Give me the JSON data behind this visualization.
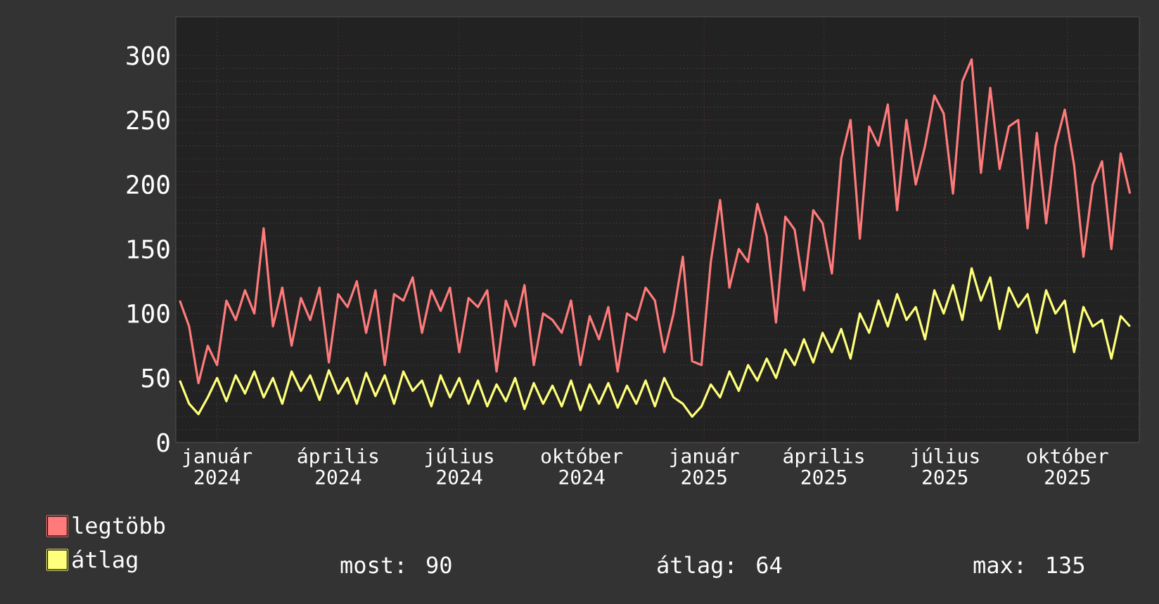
{
  "chart_data": {
    "type": "line",
    "x": [
      "2023-12-04",
      "2023-12-11",
      "2023-12-18",
      "2023-12-25",
      "2024-01-01",
      "2024-01-08",
      "2024-01-15",
      "2024-01-22",
      "2024-01-29",
      "2024-02-05",
      "2024-02-12",
      "2024-02-19",
      "2024-02-26",
      "2024-03-04",
      "2024-03-11",
      "2024-03-18",
      "2024-03-25",
      "2024-04-01",
      "2024-04-08",
      "2024-04-15",
      "2024-04-22",
      "2024-04-29",
      "2024-05-06",
      "2024-05-13",
      "2024-05-20",
      "2024-05-27",
      "2024-06-03",
      "2024-06-10",
      "2024-06-17",
      "2024-06-24",
      "2024-07-01",
      "2024-07-08",
      "2024-07-15",
      "2024-07-22",
      "2024-07-29",
      "2024-08-05",
      "2024-08-12",
      "2024-08-19",
      "2024-08-26",
      "2024-09-02",
      "2024-09-09",
      "2024-09-16",
      "2024-09-23",
      "2024-09-30",
      "2024-10-07",
      "2024-10-14",
      "2024-10-21",
      "2024-10-28",
      "2024-11-04",
      "2024-11-11",
      "2024-11-18",
      "2024-11-25",
      "2024-12-02",
      "2024-12-09",
      "2024-12-16",
      "2024-12-23",
      "2024-12-30",
      "2025-01-06",
      "2025-01-13",
      "2025-01-20",
      "2025-01-27",
      "2025-02-03",
      "2025-02-10",
      "2025-02-17",
      "2025-02-24",
      "2025-03-03",
      "2025-03-10",
      "2025-03-17",
      "2025-03-24",
      "2025-03-31",
      "2025-04-07",
      "2025-04-14",
      "2025-04-21",
      "2025-04-28",
      "2025-05-05",
      "2025-05-12",
      "2025-05-19",
      "2025-05-26",
      "2025-06-02",
      "2025-06-09",
      "2025-06-16",
      "2025-06-23",
      "2025-06-30",
      "2025-07-07",
      "2025-07-14",
      "2025-07-21",
      "2025-07-28",
      "2025-08-04",
      "2025-08-11",
      "2025-08-18",
      "2025-08-25",
      "2025-09-01",
      "2025-09-08",
      "2025-09-15",
      "2025-09-22",
      "2025-09-29",
      "2025-10-06",
      "2025-10-13",
      "2025-10-20",
      "2025-10-27",
      "2025-11-03",
      "2025-11-10",
      "2025-11-17"
    ],
    "series": [
      {
        "name": "legtöbb",
        "color": "#ff7b7b",
        "values": [
          110,
          90,
          46,
          75,
          60,
          110,
          95,
          118,
          100,
          166,
          90,
          120,
          75,
          112,
          95,
          120,
          62,
          115,
          105,
          125,
          85,
          118,
          60,
          115,
          110,
          128,
          85,
          118,
          102,
          120,
          70,
          112,
          105,
          118,
          55,
          110,
          90,
          122,
          60,
          100,
          95,
          85,
          110,
          60,
          98,
          80,
          105,
          55,
          100,
          95,
          120,
          110,
          70,
          100,
          144,
          63,
          60,
          140,
          188,
          120,
          150,
          140,
          185,
          160,
          93,
          175,
          165,
          118,
          180,
          170,
          131,
          220,
          250,
          158,
          245,
          230,
          262,
          180,
          250,
          200,
          230,
          269,
          255,
          193,
          280,
          297,
          209,
          275,
          212,
          245,
          250,
          166,
          240,
          170,
          230,
          258,
          215,
          144,
          200,
          218,
          150,
          224,
          193
        ]
      },
      {
        "name": "átlag",
        "color": "#ffff7b",
        "values": [
          48,
          30,
          22,
          35,
          50,
          32,
          52,
          38,
          55,
          35,
          50,
          30,
          55,
          40,
          52,
          33,
          56,
          38,
          50,
          30,
          54,
          36,
          52,
          30,
          55,
          40,
          48,
          28,
          52,
          35,
          50,
          30,
          48,
          28,
          45,
          32,
          50,
          26,
          46,
          30,
          44,
          28,
          48,
          25,
          45,
          30,
          46,
          27,
          44,
          30,
          48,
          28,
          50,
          35,
          30,
          20,
          28,
          45,
          35,
          55,
          40,
          60,
          48,
          65,
          50,
          72,
          60,
          80,
          62,
          85,
          70,
          88,
          65,
          100,
          85,
          110,
          90,
          115,
          95,
          105,
          80,
          118,
          100,
          122,
          95,
          135,
          110,
          128,
          88,
          120,
          105,
          115,
          85,
          118,
          100,
          110,
          70,
          105,
          90,
          95,
          65,
          98,
          90
        ]
      }
    ],
    "xlim": [
      "2023-12-01",
      "2025-11-24"
    ],
    "xticks": [
      {
        "value": "2024-01-01",
        "label": "január 2024"
      },
      {
        "value": "2024-04-01",
        "label": "április 2024"
      },
      {
        "value": "2024-07-01",
        "label": "július 2024"
      },
      {
        "value": "2024-10-01",
        "label": "október 2024"
      },
      {
        "value": "2025-01-01",
        "label": "január 2025"
      },
      {
        "value": "2025-04-01",
        "label": "április 2025"
      },
      {
        "value": "2025-07-01",
        "label": "július 2025"
      },
      {
        "value": "2025-10-01",
        "label": "október 2025"
      }
    ],
    "ylim": [
      0,
      330
    ],
    "yticks": [
      0,
      50,
      100,
      150,
      200,
      250,
      300
    ],
    "grid": true,
    "legend": "bottom",
    "annotations": [
      "most: 90",
      "átlag: 64",
      "max: 135"
    ]
  }
}
